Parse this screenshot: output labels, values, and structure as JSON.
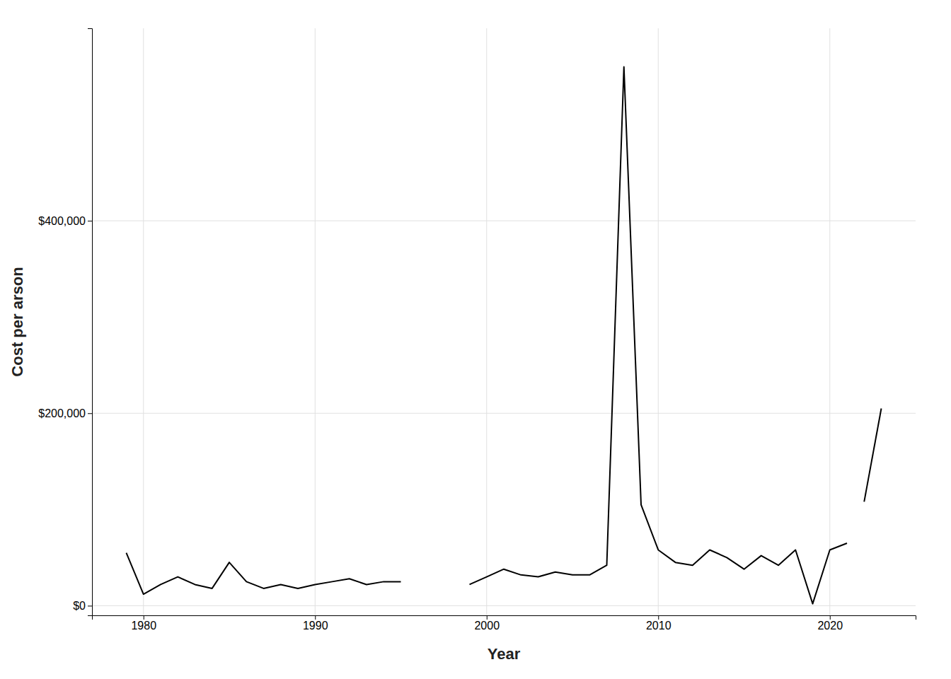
{
  "chart_data": {
    "type": "line",
    "xlabel": "Year",
    "ylabel": "Cost per arson",
    "series": [
      {
        "color": "#000000",
        "x": [
          1979,
          1980,
          1981,
          1982,
          1983,
          1984,
          1985,
          1986,
          1987,
          1988,
          1989,
          1990,
          1991,
          1992,
          1993,
          1994,
          1995
        ],
        "values": [
          55000,
          12000,
          22000,
          30000,
          22000,
          18000,
          45000,
          25000,
          18000,
          22000,
          18000,
          22000,
          25000,
          28000,
          22000,
          25000,
          25000
        ]
      },
      {
        "color": "#000000",
        "x": [
          1999,
          2000,
          2001,
          2002,
          2003,
          2004,
          2005,
          2006,
          2007,
          2008,
          2009,
          2010,
          2011,
          2012,
          2013,
          2014,
          2015,
          2016,
          2017,
          2018,
          2019,
          2020,
          2021
        ],
        "values": [
          22000,
          30000,
          38000,
          32000,
          30000,
          35000,
          32000,
          32000,
          42000,
          560000,
          105000,
          58000,
          45000,
          42000,
          58000,
          50000,
          38000,
          52000,
          42000,
          58000,
          2000,
          58000,
          65000
        ]
      },
      {
        "color": "#000000",
        "x": [
          2022,
          2023
        ],
        "values": [
          108000,
          205000
        ]
      }
    ],
    "xlim": [
      1977,
      2025
    ],
    "xticks": [
      1980,
      1990,
      2000,
      2010,
      2020
    ],
    "ylim": [
      -10000,
      600000
    ],
    "yticks": [
      {
        "value": 0,
        "label": "$0"
      },
      {
        "value": 200000,
        "label": "$200,000"
      },
      {
        "value": 400000,
        "label": "$400,000"
      }
    ],
    "grid": true
  }
}
